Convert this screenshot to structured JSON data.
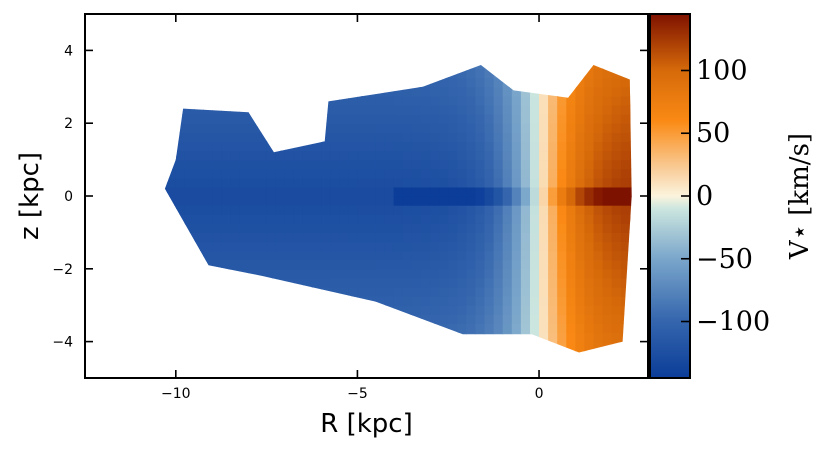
{
  "chart_data": {
    "type": "heatmap",
    "title": "",
    "xlabel": "R [kpc]",
    "ylabel": "z [kpc]",
    "xlim": [
      -12.5,
      3.0
    ],
    "ylim": [
      -5,
      5
    ],
    "x_ticks": [
      -10,
      -5,
      0
    ],
    "x_tick_labels": [
      "−10",
      "−5",
      "0"
    ],
    "y_ticks": [
      -4,
      -2,
      0,
      2,
      4
    ],
    "y_tick_labels": [
      "−4",
      "−2",
      "0",
      "2",
      "4"
    ],
    "grid": false,
    "colorbar": {
      "label": "V⋆ [km/s]",
      "range": [
        -145,
        145
      ],
      "ticks": [
        -100,
        -50,
        0,
        50,
        100
      ],
      "tick_labels": [
        "−100",
        "−50",
        "0",
        "50",
        "100"
      ],
      "colormap_stops": [
        {
          "value": -145,
          "color": "#0b3d99"
        },
        {
          "value": -100,
          "color": "#3465ad"
        },
        {
          "value": -50,
          "color": "#7aa6cb"
        },
        {
          "value": -10,
          "color": "#cce6df"
        },
        {
          "value": 0,
          "color": "#fbf4dd"
        },
        {
          "value": 20,
          "color": "#f9cf9e"
        },
        {
          "value": 60,
          "color": "#fa8a14"
        },
        {
          "value": 100,
          "color": "#d66a0a"
        },
        {
          "value": 145,
          "color": "#7e1200"
        }
      ]
    },
    "field_outline": {
      "upper_z": [
        {
          "R": -9.8,
          "z": 2.4
        },
        {
          "R": -8.0,
          "z": 2.3
        },
        {
          "R": -7.3,
          "z": 1.2
        },
        {
          "R": -5.9,
          "z": 1.5
        },
        {
          "R": -5.8,
          "z": 2.6
        },
        {
          "R": -3.2,
          "z": 3.0
        },
        {
          "R": -1.6,
          "z": 3.6
        },
        {
          "R": -0.7,
          "z": 2.9
        },
        {
          "R": 0.8,
          "z": 2.7
        },
        {
          "R": 1.5,
          "z": 3.6
        },
        {
          "R": 2.5,
          "z": 3.2
        }
      ],
      "lower_z": [
        {
          "R": -9.1,
          "z": -1.9
        },
        {
          "R": -7.6,
          "z": -2.2
        },
        {
          "R": -4.5,
          "z": -2.9
        },
        {
          "R": -2.1,
          "z": -3.8
        },
        {
          "R": -0.2,
          "z": -3.8
        },
        {
          "R": 1.1,
          "z": -4.3
        },
        {
          "R": 2.3,
          "z": -4.0
        }
      ]
    }
  }
}
